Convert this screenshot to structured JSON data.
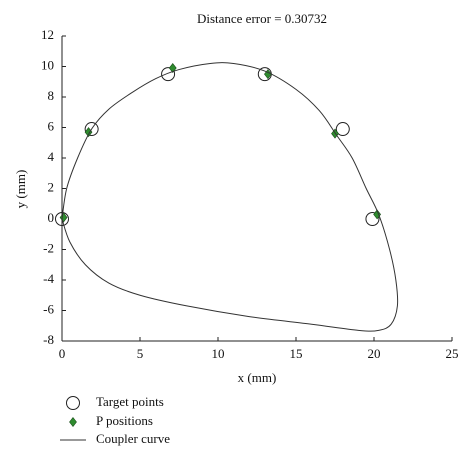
{
  "chart_data": {
    "type": "scatter",
    "title": "Distance error = 0.30732",
    "x_label": "x (mm)",
    "y_label": "y (mm)",
    "xlim": [
      0,
      25
    ],
    "xticks": [
      0,
      5,
      10,
      15,
      20,
      25
    ],
    "ylim": [
      -8,
      12
    ],
    "yticks": [
      -8,
      -6,
      -4,
      -2,
      0,
      2,
      4,
      6,
      8,
      10,
      12
    ],
    "series": [
      {
        "name": "Target points",
        "marker": "circle",
        "color": "#222222",
        "x": [
          0,
          1.9,
          6.8,
          13.0,
          18.0,
          19.9
        ],
        "values": [
          0,
          5.9,
          9.5,
          9.5,
          5.9,
          0
        ]
      },
      {
        "name": "P positions",
        "marker": "diamond",
        "color": "#2e8b2e",
        "x": [
          0.1,
          1.7,
          7.1,
          13.2,
          17.5,
          20.2
        ],
        "values": [
          0.1,
          5.7,
          9.9,
          9.5,
          5.6,
          0.3
        ]
      },
      {
        "name": "Coupler curve",
        "marker": "line",
        "color": "#333333",
        "x": [
          0,
          0.3,
          1.0,
          1.9,
          3.0,
          4.5,
          6.0,
          7.5,
          9.5,
          11.0,
          13.0,
          15.0,
          16.5,
          17.6,
          18.6,
          19.5,
          20.3,
          21.0,
          21.4,
          21.5,
          21.1,
          20.3,
          19.0,
          16.0,
          12.0,
          8.0,
          5.0,
          3.0,
          1.5,
          0.5,
          0
        ],
        "values": [
          0,
          2.0,
          4.0,
          5.9,
          7.2,
          8.3,
          9.2,
          9.8,
          10.2,
          10.2,
          9.7,
          8.5,
          7.1,
          5.5,
          4.0,
          2.0,
          0.3,
          -2.0,
          -4.0,
          -5.7,
          -6.9,
          -7.3,
          -7.3,
          -6.9,
          -6.4,
          -5.7,
          -5.0,
          -4.2,
          -3.0,
          -1.5,
          0
        ]
      }
    ]
  }
}
